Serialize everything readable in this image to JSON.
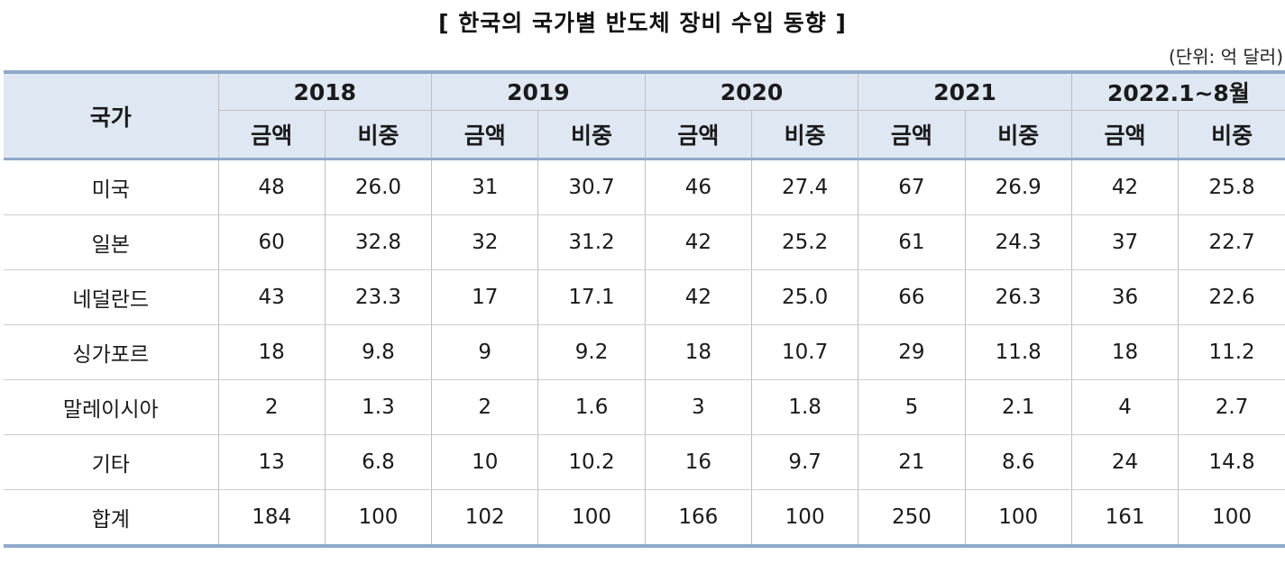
{
  "title": "[ 한국의 국가별 반도체 장비 수입 동향 ]",
  "unit": "(단위: 억 달러)",
  "table": {
    "country_header": "국가",
    "years": [
      "2018",
      "2019",
      "2020",
      "2021",
      "2022.1~8월"
    ],
    "sub_headers": [
      "금액",
      "비중"
    ],
    "rows": [
      {
        "country": "미국",
        "values": [
          "48",
          "26.0",
          "31",
          "30.7",
          "46",
          "27.4",
          "67",
          "26.9",
          "42",
          "25.8"
        ]
      },
      {
        "country": "일본",
        "values": [
          "60",
          "32.8",
          "32",
          "31.2",
          "42",
          "25.2",
          "61",
          "24.3",
          "37",
          "22.7"
        ]
      },
      {
        "country": "네덜란드",
        "values": [
          "43",
          "23.3",
          "17",
          "17.1",
          "42",
          "25.0",
          "66",
          "26.3",
          "36",
          "22.6"
        ]
      },
      {
        "country": "싱가포르",
        "values": [
          "18",
          "9.8",
          "9",
          "9.2",
          "18",
          "10.7",
          "29",
          "11.8",
          "18",
          "11.2"
        ]
      },
      {
        "country": "말레이시아",
        "values": [
          "2",
          "1.3",
          "2",
          "1.6",
          "3",
          "1.8",
          "5",
          "2.1",
          "4",
          "2.7"
        ]
      },
      {
        "country": "기타",
        "values": [
          "13",
          "6.8",
          "10",
          "10.2",
          "16",
          "9.7",
          "21",
          "8.6",
          "24",
          "14.8"
        ]
      },
      {
        "country": "합계",
        "values": [
          "184",
          "100",
          "102",
          "100",
          "166",
          "100",
          "250",
          "100",
          "161",
          "100"
        ]
      }
    ]
  },
  "colors": {
    "header_bg": "#dfe7f2",
    "rule": "#8ea9cb",
    "grid": "#bfbfbf"
  }
}
